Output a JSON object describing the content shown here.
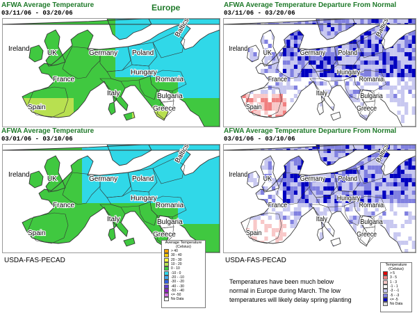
{
  "header": {
    "region": "Europe"
  },
  "panels": [
    {
      "id": "tl",
      "title": "AFWA Average Temperature",
      "dates": "03/11/06 - 03/20/06",
      "kind": "avg"
    },
    {
      "id": "tr",
      "title": "AFWA Average Temperature Departure From Normal",
      "dates": "03/11/06 - 03/20/06",
      "kind": "dep"
    },
    {
      "id": "bl",
      "title": "AFWA Average Temperature",
      "dates": "03/01/06 - 03/10/06",
      "kind": "avg"
    },
    {
      "id": "br",
      "title": "AFWA Average Temperature Departure From Normal",
      "dates": "03/01/06 - 03/10/06",
      "kind": "dep"
    }
  ],
  "map_labels": {
    "ireland": "Ireland",
    "uk": "UK",
    "germany": "Germany",
    "poland": "Poland",
    "baltics": "Baltics",
    "france": "France",
    "hungary": "Hungary",
    "romania": "Romania",
    "italy": "Italy",
    "bulgaria": "Bulgaria",
    "spain": "Spain",
    "greece": "Greece"
  },
  "credit": "USDA-FAS-PECAD",
  "legend_avg": {
    "title": [
      "Average Temperature",
      "(Celsius)"
    ],
    "items": [
      {
        "label": "> 40",
        "color": "#f0a000"
      },
      {
        "label": "30 - 40",
        "color": "#f5c800"
      },
      {
        "label": "20 - 30",
        "color": "#ffff40"
      },
      {
        "label": "10 - 20",
        "color": "#b8e050"
      },
      {
        "label": "0 - 10",
        "color": "#40c840"
      },
      {
        "label": "-10 - 0",
        "color": "#30d8e8"
      },
      {
        "label": "-20 - -10",
        "color": "#40a8f0"
      },
      {
        "label": "-30 - -20",
        "color": "#3060e0"
      },
      {
        "label": "-40 - -30",
        "color": "#6040d0"
      },
      {
        "label": "-50 - -40",
        "color": "#9020c0"
      },
      {
        "label": "<= -50",
        "color": "#d070e0"
      },
      {
        "label": "No Data",
        "color": "#ffffff"
      }
    ]
  },
  "legend_dep": {
    "title": [
      "Temperature",
      "(Celsius)"
    ],
    "items": [
      {
        "label": "> 5",
        "color": "#e00000"
      },
      {
        "label": "3 - 5",
        "color": "#f08080"
      },
      {
        "label": "1 - 3",
        "color": "#f8c8c8"
      },
      {
        "label": "-1 - 1",
        "color": "#ffffff"
      },
      {
        "label": "-3 - -1",
        "color": "#c8c8f0"
      },
      {
        "label": "-5 - -3",
        "color": "#8080e0"
      },
      {
        "label": "<= -5",
        "color": "#0000c0"
      },
      {
        "label": "No Data",
        "color": "#d8d8d8"
      }
    ]
  },
  "note": [
    "Temperatures have been much below",
    "normal in Europe during March.  The low",
    "temperatures will likely delay spring planting"
  ],
  "colors": {
    "sea": "#ffffff",
    "title_green": "#1f7a2a",
    "land_border": "#333333"
  }
}
